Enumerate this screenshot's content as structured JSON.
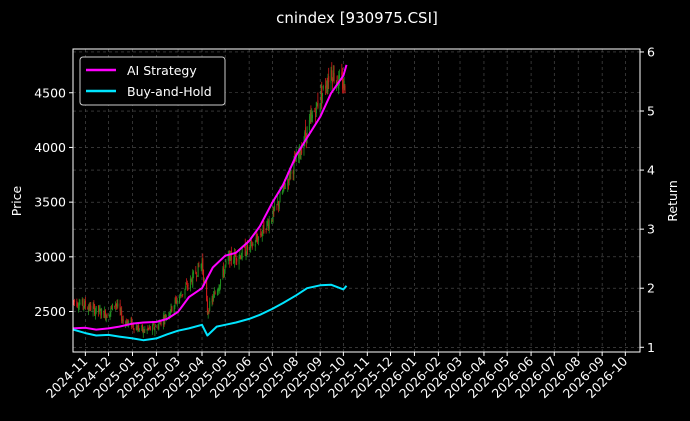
{
  "chart_data": {
    "type": "line",
    "title": "cnindex [930975.CSI]",
    "xlabel": "",
    "ylabel_left": "Price",
    "ylabel_right": "Return",
    "x_range": [
      "2024-10-16",
      "2026-10-20"
    ],
    "ylim_left": [
      2130,
      4900
    ],
    "ylim_right": [
      0.92,
      6.05
    ],
    "yticks_left": [
      2500,
      3000,
      3500,
      4000,
      4500
    ],
    "yticks_right": [
      1,
      2,
      3,
      4,
      5,
      6
    ],
    "xticks": [
      "2024-11",
      "2024-12",
      "2025-01",
      "2025-02",
      "2025-03",
      "2025-04",
      "2025-05",
      "2025-06",
      "2025-07",
      "2025-08",
      "2025-09",
      "2025-10",
      "2025-11",
      "2025-12",
      "2026-01",
      "2026-02",
      "2026-03",
      "2026-04",
      "2026-05",
      "2026-06",
      "2026-07",
      "2026-08",
      "2026-09",
      "2026-10"
    ],
    "grid": true,
    "legend_position": "top-left",
    "background": "#000000",
    "candles": {
      "up_color": "#1f8f1f",
      "down_color": "#d11a1a",
      "close_path": [
        [
          "2024-10-16",
          2600
        ],
        [
          "2024-10-31",
          2560
        ],
        [
          "2024-11-15",
          2510
        ],
        [
          "2024-11-30",
          2470
        ],
        [
          "2024-12-10",
          2580
        ],
        [
          "2024-12-20",
          2420
        ],
        [
          "2025-01-01",
          2380
        ],
        [
          "2025-01-15",
          2320
        ],
        [
          "2025-02-01",
          2360
        ],
        [
          "2025-02-15",
          2480
        ],
        [
          "2025-03-01",
          2620
        ],
        [
          "2025-03-15",
          2750
        ],
        [
          "2025-04-01",
          2950
        ],
        [
          "2025-04-08",
          2500
        ],
        [
          "2025-04-20",
          2700
        ],
        [
          "2025-05-05",
          2980
        ],
        [
          "2025-05-20",
          3020
        ],
        [
          "2025-06-05",
          3100
        ],
        [
          "2025-06-20",
          3250
        ],
        [
          "2025-07-05",
          3420
        ],
        [
          "2025-07-20",
          3700
        ],
        [
          "2025-08-05",
          3950
        ],
        [
          "2025-08-20",
          4250
        ],
        [
          "2025-09-01",
          4450
        ],
        [
          "2025-09-15",
          4700
        ],
        [
          "2025-09-25",
          4600
        ],
        [
          "2025-10-05",
          4550
        ]
      ]
    },
    "series": [
      {
        "name": "AI Strategy",
        "color": "#ff00ff",
        "axis": "right",
        "points": [
          [
            "2024-10-16",
            1.32
          ],
          [
            "2024-11-01",
            1.33
          ],
          [
            "2024-11-15",
            1.3
          ],
          [
            "2024-12-01",
            1.32
          ],
          [
            "2024-12-15",
            1.35
          ],
          [
            "2025-01-01",
            1.4
          ],
          [
            "2025-01-15",
            1.42
          ],
          [
            "2025-02-01",
            1.43
          ],
          [
            "2025-02-15",
            1.48
          ],
          [
            "2025-03-01",
            1.6
          ],
          [
            "2025-03-15",
            1.85
          ],
          [
            "2025-04-01",
            2.0
          ],
          [
            "2025-04-15",
            2.35
          ],
          [
            "2025-05-01",
            2.55
          ],
          [
            "2025-05-15",
            2.6
          ],
          [
            "2025-06-01",
            2.8
          ],
          [
            "2025-06-15",
            3.05
          ],
          [
            "2025-07-01",
            3.45
          ],
          [
            "2025-07-15",
            3.75
          ],
          [
            "2025-08-01",
            4.25
          ],
          [
            "2025-08-15",
            4.55
          ],
          [
            "2025-09-01",
            4.9
          ],
          [
            "2025-09-15",
            5.3
          ],
          [
            "2025-10-01",
            5.6
          ],
          [
            "2025-10-05",
            5.78
          ]
        ]
      },
      {
        "name": "Buy-and-Hold",
        "color": "#00e5ff",
        "axis": "right",
        "points": [
          [
            "2024-10-16",
            1.3
          ],
          [
            "2024-11-01",
            1.24
          ],
          [
            "2024-11-15",
            1.2
          ],
          [
            "2024-12-01",
            1.21
          ],
          [
            "2024-12-15",
            1.18
          ],
          [
            "2025-01-01",
            1.15
          ],
          [
            "2025-01-15",
            1.12
          ],
          [
            "2025-02-01",
            1.15
          ],
          [
            "2025-02-15",
            1.22
          ],
          [
            "2025-03-01",
            1.28
          ],
          [
            "2025-03-15",
            1.32
          ],
          [
            "2025-04-01",
            1.38
          ],
          [
            "2025-04-08",
            1.2
          ],
          [
            "2025-04-20",
            1.35
          ],
          [
            "2025-05-01",
            1.38
          ],
          [
            "2025-05-15",
            1.42
          ],
          [
            "2025-06-01",
            1.48
          ],
          [
            "2025-06-15",
            1.55
          ],
          [
            "2025-07-01",
            1.65
          ],
          [
            "2025-07-15",
            1.75
          ],
          [
            "2025-08-01",
            1.88
          ],
          [
            "2025-08-15",
            2.0
          ],
          [
            "2025-09-01",
            2.05
          ],
          [
            "2025-09-15",
            2.06
          ],
          [
            "2025-10-01",
            1.98
          ],
          [
            "2025-10-05",
            2.04
          ]
        ]
      }
    ]
  }
}
